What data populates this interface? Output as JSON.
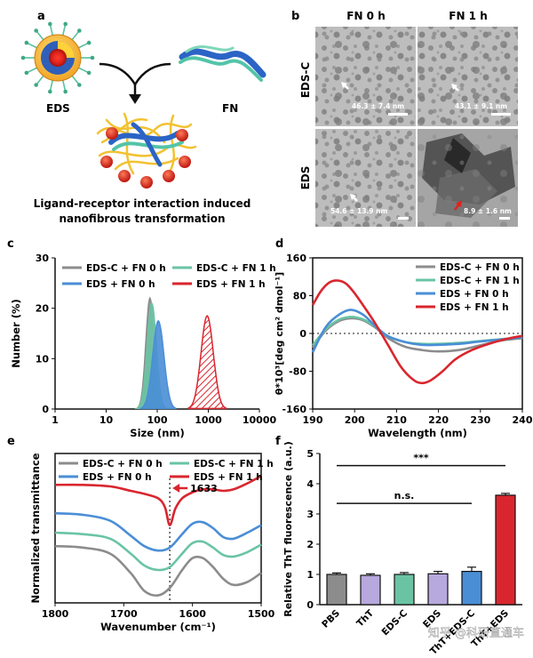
{
  "panel_letters": {
    "a": "a",
    "b": "b",
    "c": "c",
    "d": "d",
    "e": "e",
    "f": "f"
  },
  "panel_a": {
    "label_eds": "EDS",
    "label_fn": "FN",
    "caption_line1": "Ligand-receptor interaction induced",
    "caption_line2": "nanofibrous transformation"
  },
  "panel_b": {
    "col_headers": [
      "FN 0 h",
      "FN 1 h"
    ],
    "row_headers": [
      "EDS-C",
      "EDS"
    ],
    "measurements": [
      "46.3 ± 7.4 nm",
      "43.1 ± 9.1 nm",
      "54.6 ± 13.9 nm",
      "8.9 ± 1.6 nm"
    ]
  },
  "watermark": "知乎 @科研直通车",
  "colors": {
    "gray": "#8c8c8c",
    "green": "#6ac4a4",
    "blue": "#4a8ed6",
    "red": "#d9262e",
    "purple": "#b7a8dd"
  },
  "chart_data": [
    {
      "id": "c",
      "type": "area",
      "xscale": "log",
      "xlabel": "Size (nm)",
      "ylabel": "Number (%)",
      "xlim": [
        1,
        10000
      ],
      "ylim": [
        0,
        30
      ],
      "xticks": [
        "1",
        "10",
        "100",
        "1000",
        "10000"
      ],
      "yticks": [
        "0",
        "10",
        "20",
        "30"
      ],
      "legend": [
        "EDS-C + FN 0 h",
        "EDS-C + FN 1 h",
        "EDS + FN 0 h",
        "EDS + FN 1 h"
      ],
      "series": [
        {
          "name": "EDS-C + FN 0 h",
          "peak_x": 72,
          "peak_y": 22,
          "log_sigma": 0.08
        },
        {
          "name": "EDS-C + FN 1 h",
          "peak_x": 78,
          "peak_y": 21,
          "log_sigma": 0.09
        },
        {
          "name": "EDS + FN 0 h",
          "peak_x": 105,
          "peak_y": 17.5,
          "log_sigma": 0.11
        },
        {
          "name": "EDS + FN 1 h",
          "peak_x": 950,
          "peak_y": 18.5,
          "log_sigma": 0.12
        }
      ]
    },
    {
      "id": "d",
      "type": "line",
      "xlabel": "Wavelength (nm)",
      "ylabel": "θ*10³[deg cm² dmol⁻¹]",
      "xlim": [
        190,
        240
      ],
      "ylim": [
        -160,
        160
      ],
      "xticks": [
        "190",
        "200",
        "210",
        "220",
        "230",
        "240"
      ],
      "yticks": [
        "-160",
        "-80",
        "0",
        "80",
        "160"
      ],
      "legend": [
        "EDS-C + FN 0 h",
        "EDS-C + FN 1 h",
        "EDS + FN 0 h",
        "EDS + FN 1 h"
      ],
      "series": [
        {
          "name": "EDS-C + FN 0 h",
          "x": [
            190,
            193,
            196,
            199,
            202,
            205,
            208,
            212,
            216,
            220,
            225,
            230,
            235,
            240
          ],
          "y": [
            -30,
            5,
            25,
            32,
            28,
            12,
            -10,
            -28,
            -35,
            -38,
            -35,
            -25,
            -15,
            -10
          ]
        },
        {
          "name": "EDS-C + FN 1 h",
          "x": [
            190,
            193,
            196,
            199,
            202,
            205,
            208,
            212,
            216,
            220,
            225,
            230,
            235,
            240
          ],
          "y": [
            -25,
            8,
            28,
            35,
            30,
            14,
            -6,
            -18,
            -22,
            -22,
            -20,
            -16,
            -12,
            -8
          ]
        },
        {
          "name": "EDS + FN 0 h",
          "x": [
            190,
            193,
            196,
            199,
            202,
            205,
            208,
            212,
            216,
            220,
            225,
            230,
            235,
            240
          ],
          "y": [
            -40,
            12,
            38,
            50,
            40,
            15,
            -6,
            -18,
            -24,
            -24,
            -22,
            -17,
            -13,
            -8
          ]
        },
        {
          "name": "EDS + FN 1 h",
          "x": [
            190,
            192,
            194,
            196,
            198,
            200,
            202,
            205,
            208,
            211,
            214,
            216,
            218,
            221,
            224,
            228,
            232,
            236,
            240
          ],
          "y": [
            60,
            90,
            108,
            112,
            105,
            85,
            60,
            20,
            -25,
            -70,
            -98,
            -105,
            -100,
            -80,
            -55,
            -35,
            -22,
            -12,
            -5
          ]
        }
      ]
    },
    {
      "id": "e",
      "type": "line",
      "xlabel": "Wavenumber (cm⁻¹)",
      "ylabel": "Normalized transmittance",
      "xlim": [
        1800,
        1500
      ],
      "ylim": [
        0,
        1
      ],
      "xticks": [
        "1800",
        "1700",
        "1600",
        "1500"
      ],
      "annotation": "1633",
      "legend": [
        "EDS-C + FN 0 h",
        "EDS-C + FN 1 h",
        "EDS + FN 0 h",
        "EDS + FN 1 h"
      ],
      "series": [
        {
          "name": "EDS-C + FN 0 h",
          "x": [
            1800,
            1760,
            1720,
            1690,
            1670,
            1650,
            1633,
            1615,
            1600,
            1585,
            1570,
            1555,
            1540,
            1520,
            1500
          ],
          "y": [
            0.38,
            0.37,
            0.33,
            0.2,
            0.08,
            0.05,
            0.1,
            0.22,
            0.3,
            0.3,
            0.24,
            0.16,
            0.12,
            0.14,
            0.2
          ]
        },
        {
          "name": "EDS-C + FN 1 h",
          "x": [
            1800,
            1760,
            1720,
            1690,
            1670,
            1650,
            1633,
            1615,
            1600,
            1585,
            1570,
            1555,
            1540,
            1520,
            1500
          ],
          "y": [
            0.47,
            0.46,
            0.43,
            0.33,
            0.25,
            0.22,
            0.24,
            0.33,
            0.4,
            0.41,
            0.37,
            0.32,
            0.31,
            0.34,
            0.39
          ]
        },
        {
          "name": "EDS + FN 0 h",
          "x": [
            1800,
            1760,
            1720,
            1690,
            1670,
            1650,
            1633,
            1615,
            1600,
            1585,
            1570,
            1555,
            1540,
            1520,
            1500
          ],
          "y": [
            0.6,
            0.59,
            0.55,
            0.45,
            0.38,
            0.35,
            0.37,
            0.46,
            0.53,
            0.54,
            0.5,
            0.44,
            0.43,
            0.47,
            0.52
          ]
        },
        {
          "name": "EDS + FN 1 h",
          "x": [
            1800,
            1760,
            1720,
            1690,
            1670,
            1650,
            1640,
            1633,
            1625,
            1615,
            1600,
            1585,
            1570,
            1555,
            1540,
            1520,
            1500
          ],
          "y": [
            0.79,
            0.79,
            0.78,
            0.75,
            0.73,
            0.7,
            0.64,
            0.52,
            0.63,
            0.7,
            0.74,
            0.76,
            0.76,
            0.75,
            0.76,
            0.8,
            0.85
          ]
        }
      ]
    },
    {
      "id": "f",
      "type": "bar",
      "ylabel": "Relative ThT fluorescence (a.u.)",
      "ylim": [
        0,
        5
      ],
      "yticks": [
        "0",
        "1",
        "2",
        "3",
        "4",
        "5"
      ],
      "categories": [
        "PBS",
        "ThT",
        "EDS-C",
        "EDS",
        "ThT+EDS-C",
        "ThT+EDS"
      ],
      "values": [
        1.0,
        0.97,
        1.0,
        1.02,
        1.1,
        3.62
      ],
      "errors": [
        0.05,
        0.05,
        0.06,
        0.08,
        0.14,
        0.06
      ],
      "significance": [
        {
          "from": "PBS",
          "to": "ThT+EDS",
          "label": "***"
        },
        {
          "from": "PBS",
          "to": "ThT+EDS-C",
          "label": "n.s."
        }
      ]
    }
  ]
}
